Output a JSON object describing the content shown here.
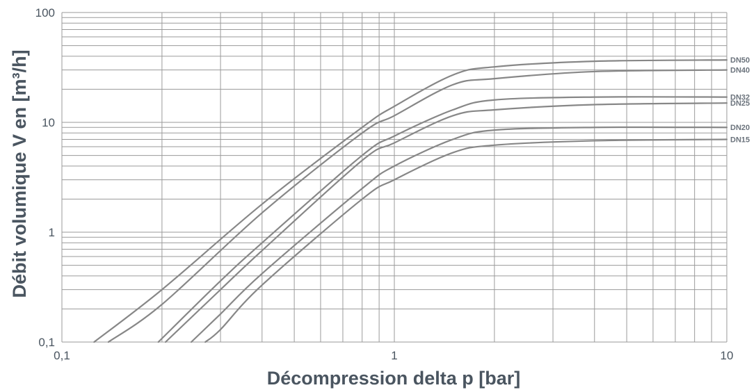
{
  "chart_data": {
    "type": "line",
    "xlabel": "Décompression delta p [bar]",
    "ylabel": "Débit volumique V en [m³/h]",
    "x_scale": "log",
    "y_scale": "log",
    "xlim": [
      0.1,
      10
    ],
    "ylim": [
      0.1,
      100
    ],
    "x_ticks": [
      {
        "value": 0.1,
        "label": "0,1"
      },
      {
        "value": 1,
        "label": "1"
      },
      {
        "value": 10,
        "label": "10"
      }
    ],
    "y_ticks": [
      {
        "value": 0.1,
        "label": "0,1"
      },
      {
        "value": 1,
        "label": "1"
      },
      {
        "value": 10,
        "label": "10"
      },
      {
        "value": 100,
        "label": "100"
      }
    ],
    "grid": true,
    "series": [
      {
        "name": "DN50",
        "x": [
          0.125,
          0.2,
          0.4,
          0.8,
          1.0,
          1.5,
          2.0,
          4.0,
          10.0
        ],
        "y": [
          0.1,
          0.3,
          1.8,
          9.0,
          14.0,
          27.0,
          32.0,
          36.0,
          37.0
        ]
      },
      {
        "name": "DN40",
        "x": [
          0.138,
          0.2,
          0.4,
          0.8,
          1.0,
          1.5,
          2.0,
          4.0,
          10.0
        ],
        "y": [
          0.1,
          0.22,
          1.5,
          8.0,
          11.5,
          22.0,
          25.0,
          29.0,
          30.0
        ]
      },
      {
        "name": "DN32",
        "x": [
          0.195,
          0.3,
          0.4,
          0.8,
          1.0,
          1.5,
          2.0,
          4.0,
          10.0
        ],
        "y": [
          0.1,
          0.36,
          0.8,
          5.0,
          7.5,
          13.0,
          16.0,
          17.0,
          17.0
        ]
      },
      {
        "name": "DN25",
        "x": [
          0.205,
          0.3,
          0.4,
          0.8,
          1.0,
          1.5,
          2.0,
          4.0,
          10.0
        ],
        "y": [
          0.1,
          0.3,
          0.68,
          4.5,
          6.5,
          11.5,
          13.0,
          14.5,
          15.0
        ]
      },
      {
        "name": "DN20",
        "x": [
          0.245,
          0.3,
          0.4,
          0.8,
          1.0,
          1.5,
          2.0,
          4.0,
          10.0
        ],
        "y": [
          0.1,
          0.18,
          0.42,
          2.5,
          4.0,
          7.0,
          8.5,
          9.0,
          9.0
        ]
      },
      {
        "name": "DN15",
        "x": [
          0.27,
          0.3,
          0.4,
          0.8,
          1.0,
          1.5,
          2.0,
          4.0,
          10.0
        ],
        "y": [
          0.1,
          0.13,
          0.33,
          2.0,
          3.0,
          5.3,
          6.2,
          6.8,
          7.0
        ]
      }
    ]
  },
  "colors": {
    "grid": "#9a9a9a",
    "curve": "#878787",
    "text": "#4a5560",
    "series_label": "#6b737c"
  }
}
